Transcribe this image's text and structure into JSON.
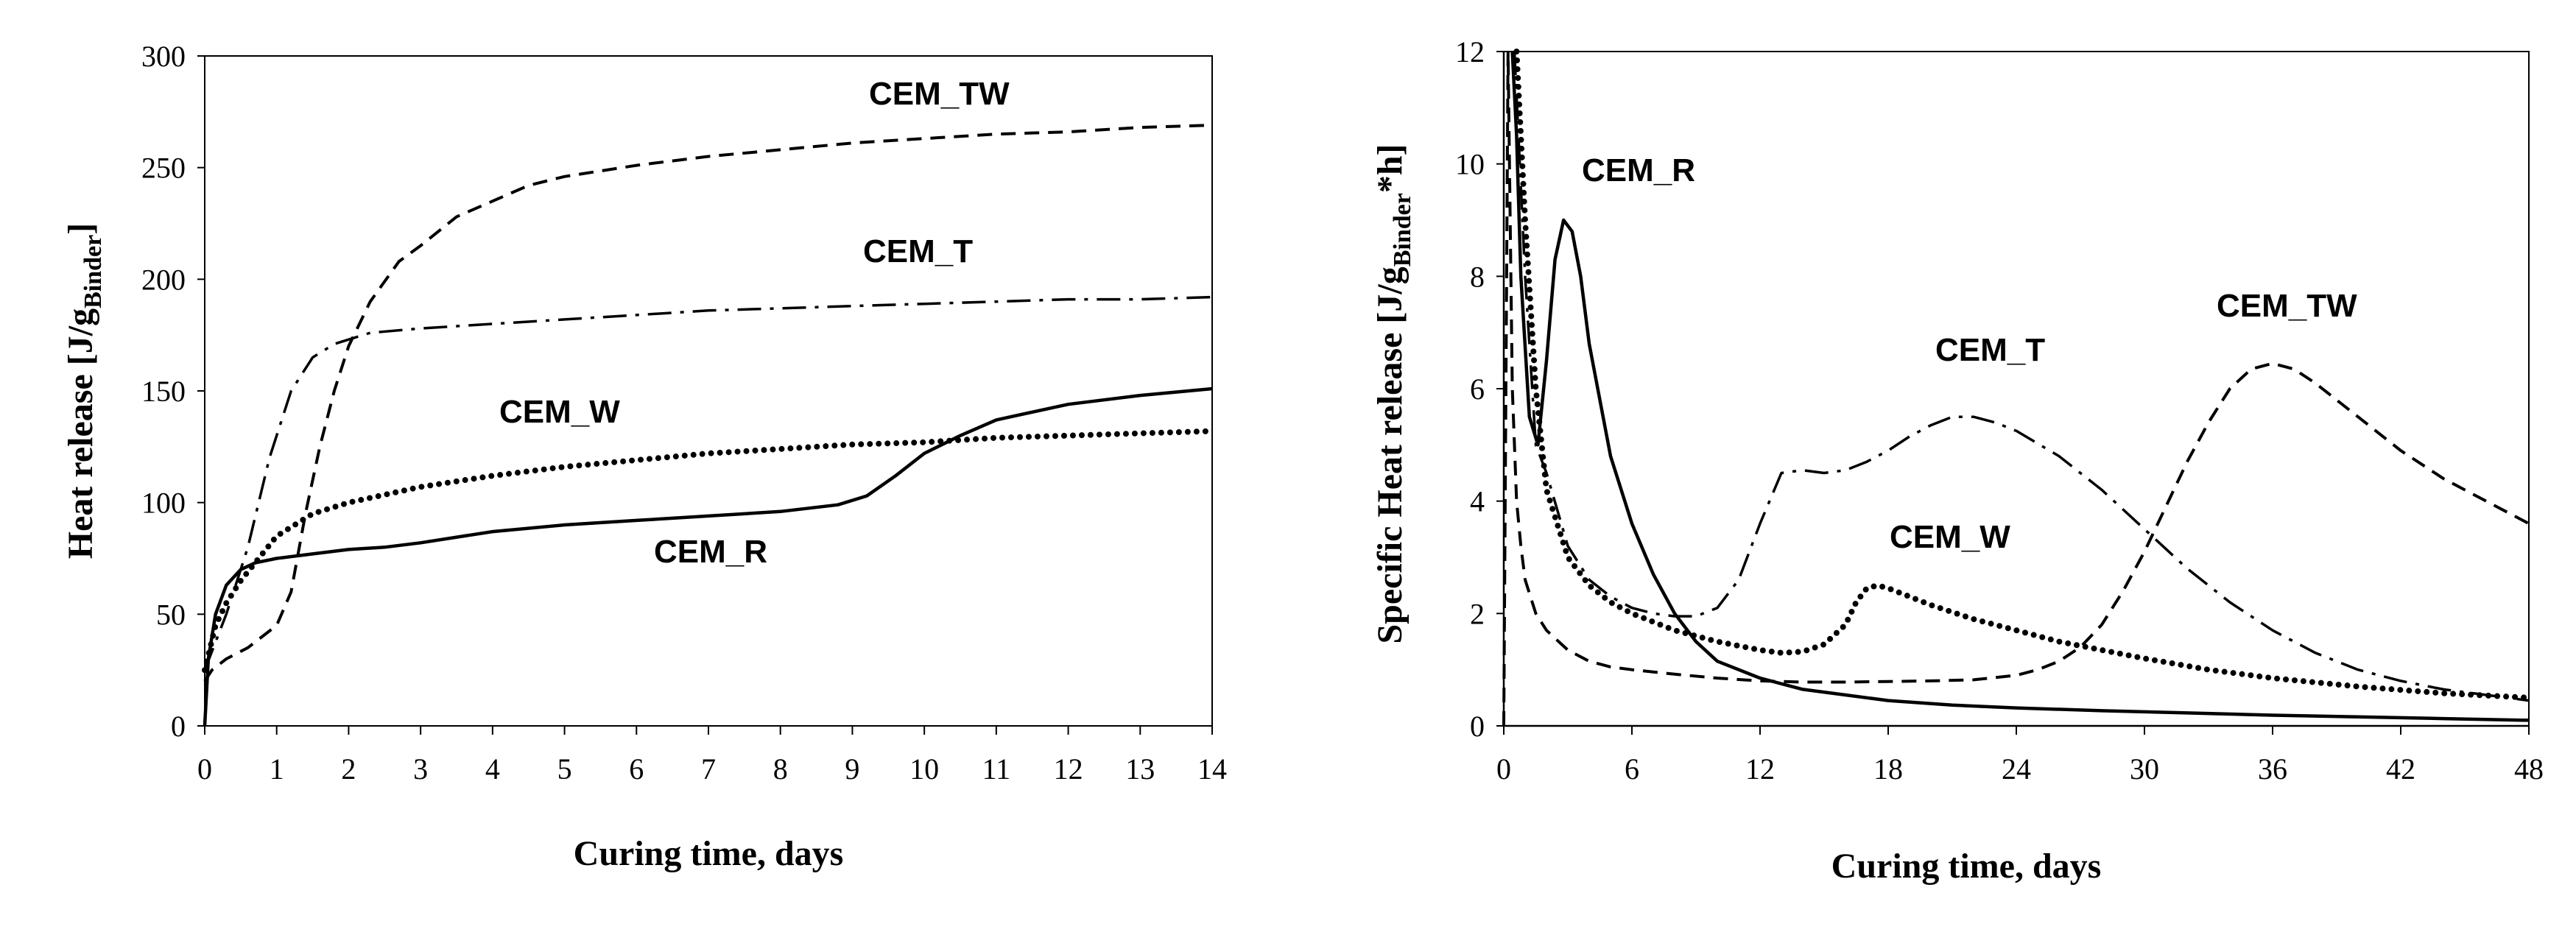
{
  "chart_data": [
    {
      "type": "line",
      "title": "",
      "xlabel": "Curing time,  days",
      "ylabel": {
        "main": "Heat release [J/g",
        "sub": "Binder",
        "tail": "]"
      },
      "xlim": [
        0,
        14
      ],
      "ylim": [
        0,
        300
      ],
      "xticks": [
        "0",
        "1",
        "2",
        "3",
        "4",
        "5",
        "6",
        "7",
        "8",
        "9",
        "10",
        "11",
        "12",
        "13",
        "14"
      ],
      "yticks": [
        "0",
        "50",
        "100",
        "150",
        "200",
        "250",
        "300"
      ],
      "grid": false,
      "series": [
        {
          "name": "CEM_TW",
          "style": "dashed",
          "label": "CEM_TW",
          "x": [
            0,
            0.1,
            0.3,
            0.6,
            1.0,
            1.2,
            1.4,
            1.6,
            1.8,
            2.0,
            2.3,
            2.7,
            3.0,
            3.5,
            4.0,
            4.5,
            5.0,
            6.0,
            7.0,
            8.0,
            9.0,
            10.0,
            11.0,
            12.0,
            13.0,
            14.0
          ],
          "y": [
            20,
            25,
            30,
            35,
            45,
            60,
            95,
            125,
            150,
            170,
            190,
            208,
            215,
            228,
            235,
            242,
            246,
            251,
            255,
            258,
            261,
            263,
            265,
            266,
            268,
            269
          ]
        },
        {
          "name": "CEM_T",
          "style": "dashdot",
          "label": "CEM_T",
          "x": [
            0,
            0.3,
            0.6,
            0.9,
            1.2,
            1.5,
            1.8,
            2.0,
            2.3,
            3.0,
            4.0,
            5.0,
            6.0,
            7.0,
            8.0,
            9.0,
            10.0,
            11.0,
            12.0,
            13.0,
            14.0
          ],
          "y": [
            25,
            50,
            80,
            120,
            150,
            165,
            171,
            173,
            176,
            178,
            180,
            182,
            184,
            186,
            187,
            188,
            189,
            190,
            191,
            191,
            192
          ]
        },
        {
          "name": "CEM_W",
          "style": "dotted",
          "label": "CEM_W",
          "x": [
            0,
            0.15,
            0.3,
            0.5,
            0.8,
            1.0,
            1.5,
            2.0,
            3.0,
            4.0,
            5.0,
            6.0,
            7.0,
            8.0,
            9.0,
            10.0,
            11.0,
            12.0,
            13.0,
            14.0
          ],
          "y": [
            25,
            45,
            55,
            65,
            77,
            85,
            95,
            100,
            107,
            112,
            116,
            119,
            122,
            124,
            126,
            127,
            129,
            130,
            131,
            132
          ]
        },
        {
          "name": "CEM_R",
          "style": "solid",
          "label": "CEM_R",
          "x": [
            0,
            0.05,
            0.15,
            0.3,
            0.5,
            0.7,
            1.0,
            1.5,
            2.0,
            2.5,
            3.0,
            4.0,
            5.0,
            6.0,
            7.0,
            8.0,
            8.8,
            9.2,
            9.6,
            10.0,
            10.5,
            11.0,
            12.0,
            13.0,
            14.0
          ],
          "y": [
            0,
            30,
            50,
            63,
            70,
            73,
            75,
            77,
            79,
            80,
            82,
            87,
            90,
            92,
            94,
            96,
            99,
            103,
            112,
            122,
            130,
            137,
            144,
            148,
            151
          ]
        }
      ],
      "annotations": [
        "CEM_TW",
        "CEM_T",
        "CEM_W",
        "CEM_R"
      ]
    },
    {
      "type": "line",
      "title": "",
      "xlabel": "Curing time, days",
      "ylabel": {
        "main": "Specific Heat release [J/g",
        "sub": "Binder",
        "tail": "*h]"
      },
      "xlim": [
        0,
        48
      ],
      "ylim": [
        0,
        12
      ],
      "xticks": [
        "0",
        "6",
        "12",
        "18",
        "24",
        "30",
        "36",
        "42",
        "48"
      ],
      "yticks": [
        "0",
        "2",
        "4",
        "6",
        "8",
        "10",
        "12"
      ],
      "grid": false,
      "series": [
        {
          "name": "CEM_R",
          "style": "solid",
          "label": "CEM_R",
          "x": [
            0.4,
            0.6,
            0.8,
            1.2,
            1.6,
            2.0,
            2.4,
            2.8,
            3.2,
            3.6,
            4.0,
            5.0,
            6.0,
            7.0,
            8.0,
            9.0,
            10.0,
            12.0,
            14.0,
            16.0,
            18.0,
            21.0,
            24.0,
            28.0,
            32.0,
            36.0,
            40.0,
            44.0,
            48.0
          ],
          "y": [
            12.0,
            10.5,
            8.0,
            5.5,
            5.0,
            6.5,
            8.3,
            9.0,
            8.8,
            8.0,
            6.8,
            4.8,
            3.6,
            2.7,
            2.0,
            1.5,
            1.15,
            0.85,
            0.65,
            0.55,
            0.45,
            0.37,
            0.32,
            0.27,
            0.23,
            0.19,
            0.16,
            0.13,
            0.1
          ]
        },
        {
          "name": "CEM_T",
          "style": "dashdot",
          "label": "CEM_T",
          "x": [
            0.5,
            1.0,
            1.5,
            2.0,
            3.0,
            4.0,
            5.0,
            6.0,
            7.0,
            8.0,
            9.0,
            10.0,
            11.0,
            12.0,
            13.0,
            14.0,
            15.0,
            16.0,
            17.0,
            18.0,
            19.0,
            20.0,
            21.0,
            22.0,
            23.0,
            24.0,
            26.0,
            28.0,
            30.0,
            32.0,
            34.0,
            36.0,
            38.0,
            40.0,
            42.0,
            44.0,
            46.0,
            48.0
          ],
          "y": [
            12.0,
            8.0,
            5.0,
            4.5,
            3.2,
            2.6,
            2.3,
            2.1,
            2.0,
            1.95,
            1.95,
            2.1,
            2.6,
            3.6,
            4.5,
            4.55,
            4.5,
            4.55,
            4.7,
            4.9,
            5.15,
            5.35,
            5.5,
            5.5,
            5.4,
            5.25,
            4.8,
            4.2,
            3.5,
            2.8,
            2.2,
            1.7,
            1.3,
            1.0,
            0.8,
            0.65,
            0.55,
            0.45
          ]
        },
        {
          "name": "CEM_W",
          "style": "dotted",
          "label": "CEM_W",
          "x": [
            0.6,
            1.0,
            1.5,
            2.0,
            3.0,
            4.0,
            5.0,
            6.0,
            8.0,
            10.0,
            12.0,
            13.0,
            14.0,
            15.0,
            16.0,
            16.5,
            17.0,
            17.5,
            18.0,
            19.0,
            20.0,
            22.0,
            24.0,
            26.0,
            28.0,
            30.0,
            33.0,
            36.0,
            40.0,
            44.0,
            48.0
          ],
          "y": [
            12.0,
            9.0,
            6.0,
            4.2,
            3.0,
            2.5,
            2.2,
            2.0,
            1.7,
            1.5,
            1.35,
            1.3,
            1.32,
            1.45,
            1.8,
            2.2,
            2.45,
            2.5,
            2.45,
            2.3,
            2.15,
            1.9,
            1.7,
            1.5,
            1.35,
            1.2,
            1.0,
            0.85,
            0.7,
            0.58,
            0.5
          ]
        },
        {
          "name": "CEM_TW",
          "style": "dashed",
          "label": "CEM_TW",
          "x": [
            0.0,
            0.2,
            0.4,
            0.6,
            0.8,
            1.0,
            1.5,
            2.0,
            3.0,
            4.0,
            5.0,
            6.0,
            8.0,
            10.0,
            12.0,
            14.0,
            16.0,
            18.0,
            20.0,
            22.0,
            24.0,
            25.0,
            26.0,
            27.0,
            28.0,
            29.0,
            30.0,
            31.0,
            32.0,
            33.0,
            34.0,
            35.0,
            36.0,
            37.0,
            38.0,
            40.0,
            42.0,
            44.0,
            46.0,
            48.0
          ],
          "y": [
            0.0,
            12.0,
            6.0,
            4.0,
            3.2,
            2.6,
            2.0,
            1.7,
            1.35,
            1.15,
            1.05,
            1.0,
            0.92,
            0.85,
            0.8,
            0.78,
            0.78,
            0.79,
            0.8,
            0.82,
            0.9,
            1.0,
            1.15,
            1.4,
            1.8,
            2.4,
            3.1,
            3.9,
            4.7,
            5.4,
            6.0,
            6.35,
            6.45,
            6.35,
            6.1,
            5.5,
            4.9,
            4.4,
            4.0,
            3.6
          ]
        }
      ],
      "annotations": [
        "CEM_R",
        "CEM_T",
        "CEM_TW",
        "CEM_W"
      ]
    }
  ]
}
